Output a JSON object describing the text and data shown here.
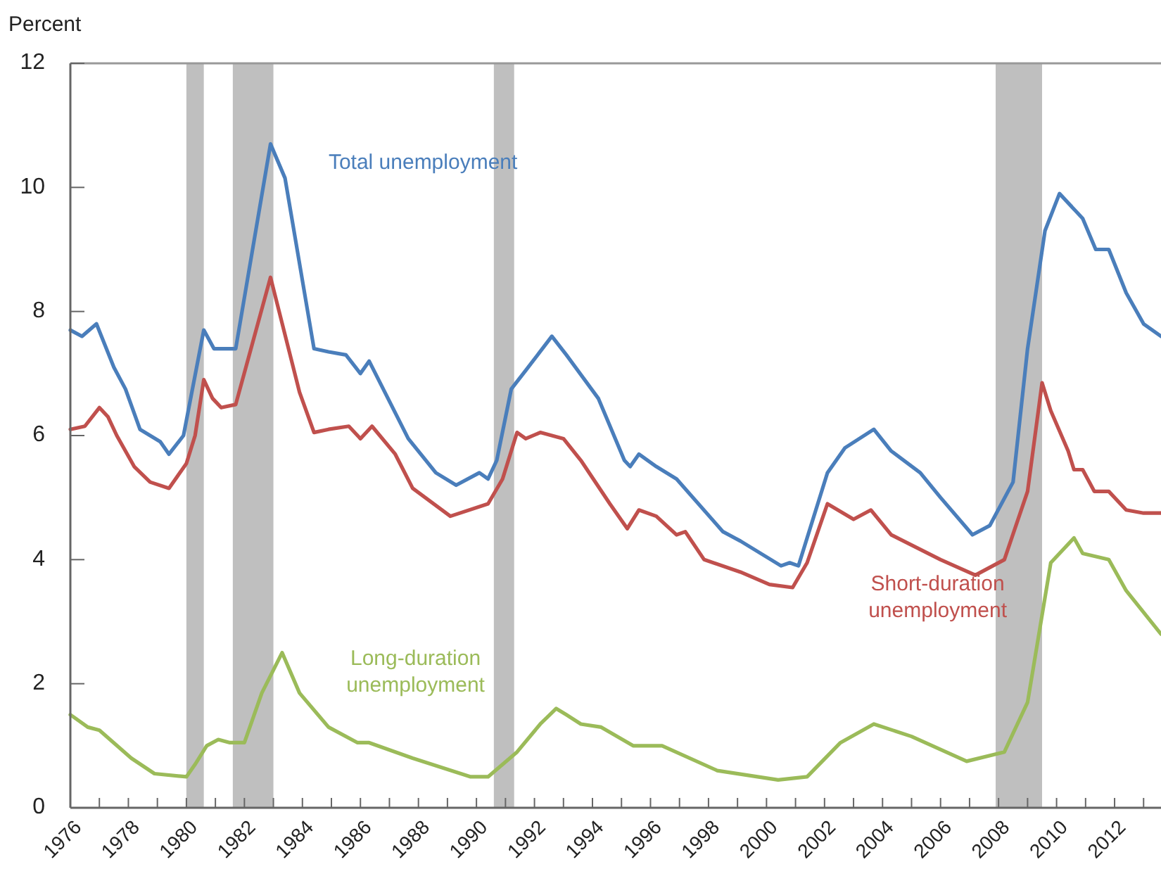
{
  "chart_data": {
    "type": "line",
    "ylabel": "Percent",
    "xlim": [
      1976,
      2013.6
    ],
    "ylim": [
      0,
      12
    ],
    "xticks": [
      1976,
      {
        "value": 1977,
        "label": null
      },
      1978,
      {
        "value": 1979,
        "label": null
      },
      1980,
      {
        "value": 1981,
        "label": null
      },
      1982,
      {
        "value": 1983,
        "label": null
      },
      1984,
      {
        "value": 1985,
        "label": null
      },
      1986,
      {
        "value": 1987,
        "label": null
      },
      1988,
      {
        "value": 1989,
        "label": null
      },
      1990,
      {
        "value": 1991,
        "label": null
      },
      1992,
      {
        "value": 1993,
        "label": null
      },
      1994,
      {
        "value": 1995,
        "label": null
      },
      1996,
      {
        "value": 1997,
        "label": null
      },
      1998,
      {
        "value": 1999,
        "label": null
      },
      2000,
      {
        "value": 2001,
        "label": null
      },
      2002,
      {
        "value": 2003,
        "label": null
      },
      2004,
      {
        "value": 2005,
        "label": null
      },
      2006,
      {
        "value": 2007,
        "label": null
      },
      2008,
      {
        "value": 2009,
        "label": null
      },
      2010,
      {
        "value": 2011,
        "label": null
      },
      2012,
      {
        "value": 2013,
        "label": null
      }
    ],
    "yticks": [
      0,
      2,
      4,
      6,
      8,
      10,
      12
    ],
    "grid": false,
    "marker": "none",
    "line_style": "solid",
    "bands": [
      {
        "axis": "x",
        "from": 1980.0,
        "to": 1980.6,
        "color": "#bfbfbf"
      },
      {
        "axis": "x",
        "from": 1981.6,
        "to": 1983.0,
        "color": "#bfbfbf"
      },
      {
        "axis": "x",
        "from": 1990.6,
        "to": 1991.3,
        "color": "#bfbfbf"
      },
      {
        "axis": "x",
        "from": 2007.9,
        "to": 2009.5,
        "color": "#bfbfbf"
      }
    ],
    "series": [
      {
        "name": "Total unemployment",
        "color": "#4a7ebb",
        "x": [
          1976.0,
          1976.4,
          1976.9,
          1977.5,
          1977.9,
          1978.4,
          1979.1,
          1979.4,
          1979.9,
          1980.6,
          1980.95,
          1981.7,
          1982.9,
          1983.4,
          1984.4,
          1984.9,
          1985.5,
          1986.0,
          1986.3,
          1987.65,
          1988.6,
          1989.3,
          1990.1,
          1990.4,
          1990.7,
          1991.2,
          1991.7,
          1992.6,
          1993.1,
          1994.2,
          1995.1,
          1995.3,
          1995.6,
          1996.2,
          1996.9,
          1998.5,
          1999.1,
          2000.5,
          2000.8,
          2001.1,
          2002.1,
          2002.7,
          2003.7,
          2004.3,
          2005.3,
          2006.0,
          2007.1,
          2007.7,
          2008.5,
          2009.0,
          2009.6,
          2010.1,
          2010.9,
          2011.35,
          2011.8,
          2012.4,
          2013.0,
          2013.6
        ],
        "values": [
          7.7,
          7.6,
          7.8,
          7.1,
          6.75,
          6.1,
          5.9,
          5.7,
          6.0,
          7.7,
          7.4,
          7.4,
          10.7,
          10.15,
          7.4,
          7.35,
          7.3,
          7.0,
          7.2,
          5.95,
          5.4,
          5.2,
          5.4,
          5.3,
          5.6,
          6.75,
          7.05,
          7.6,
          7.3,
          6.6,
          5.6,
          5.5,
          5.7,
          5.5,
          5.3,
          4.45,
          4.3,
          3.9,
          3.95,
          3.9,
          5.4,
          5.8,
          6.1,
          5.75,
          5.4,
          5.0,
          4.4,
          4.55,
          5.25,
          7.4,
          9.3,
          9.9,
          9.5,
          9.0,
          9.0,
          8.3,
          7.8,
          7.6
        ]
      },
      {
        "name": "Short-duration unemployment",
        "color": "#c0504d",
        "x": [
          1976.0,
          1976.5,
          1977.0,
          1977.3,
          1977.6,
          1978.2,
          1978.75,
          1979.4,
          1980.0,
          1980.3,
          1980.6,
          1980.9,
          1981.2,
          1981.7,
          1982.9,
          1983.9,
          1984.4,
          1984.9,
          1985.6,
          1986.0,
          1986.4,
          1987.2,
          1987.8,
          1989.1,
          1990.4,
          1990.9,
          1991.4,
          1991.7,
          1992.2,
          1993.0,
          1993.6,
          1994.6,
          1995.2,
          1995.6,
          1996.2,
          1996.9,
          1997.2,
          1997.85,
          1999.1,
          2000.1,
          2000.9,
          2001.4,
          2002.1,
          2003.0,
          2003.6,
          2004.3,
          2006.0,
          2007.2,
          2008.2,
          2009.0,
          2009.5,
          2009.8,
          2010.4,
          2010.6,
          2010.9,
          2011.3,
          2011.8,
          2012.4,
          2013.0,
          2013.6
        ],
        "values": [
          6.1,
          6.15,
          6.45,
          6.3,
          6.0,
          5.5,
          5.25,
          5.15,
          5.55,
          6.0,
          6.9,
          6.6,
          6.45,
          6.5,
          8.55,
          6.7,
          6.05,
          6.1,
          6.15,
          5.95,
          6.15,
          5.7,
          5.15,
          4.7,
          4.9,
          5.3,
          6.05,
          5.95,
          6.05,
          5.95,
          5.6,
          4.9,
          4.5,
          4.8,
          4.7,
          4.4,
          4.45,
          4.0,
          3.8,
          3.6,
          3.55,
          3.95,
          4.9,
          4.65,
          4.8,
          4.4,
          4.0,
          3.75,
          4.0,
          5.1,
          6.85,
          6.4,
          5.75,
          5.45,
          5.45,
          5.1,
          5.1,
          4.8,
          4.75,
          4.75
        ]
      },
      {
        "name": "Long-duration unemployment",
        "color": "#9bbb59",
        "x": [
          1976.0,
          1976.6,
          1977.0,
          1978.1,
          1978.9,
          1980.0,
          1980.3,
          1980.7,
          1981.1,
          1981.5,
          1982.0,
          1982.6,
          1983.3,
          1983.9,
          1984.9,
          1985.9,
          1986.3,
          1987.8,
          1989.8,
          1990.4,
          1991.4,
          1992.2,
          1992.75,
          1993.1,
          1993.6,
          1994.3,
          1995.4,
          1996.4,
          1998.3,
          2000.4,
          2001.4,
          2002.55,
          2003.7,
          2005.0,
          2006.9,
          2008.2,
          2009.0,
          2009.8,
          2010.6,
          2010.9,
          2011.8,
          2012.4,
          2013.6
        ],
        "values": [
          1.5,
          1.3,
          1.25,
          0.8,
          0.55,
          0.5,
          0.7,
          1.0,
          1.1,
          1.05,
          1.05,
          1.85,
          2.5,
          1.85,
          1.3,
          1.05,
          1.05,
          0.8,
          0.5,
          0.5,
          0.9,
          1.35,
          1.6,
          1.5,
          1.35,
          1.3,
          1.0,
          1.0,
          0.6,
          0.45,
          0.5,
          1.05,
          1.35,
          1.15,
          0.75,
          0.9,
          1.7,
          3.95,
          4.35,
          4.1,
          4.0,
          3.5,
          2.8
        ]
      }
    ]
  }
}
